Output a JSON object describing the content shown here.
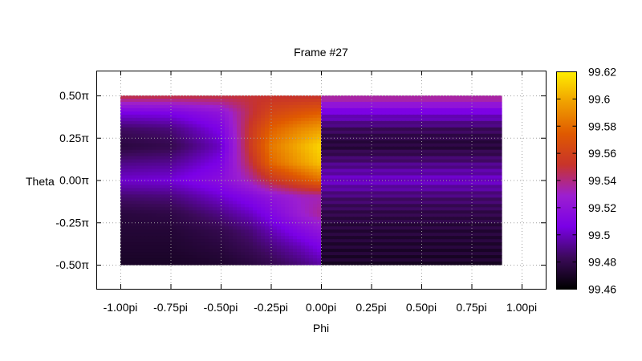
{
  "chart_data": {
    "type": "heatmap",
    "title": "Frame #27",
    "xlabel": "Phi",
    "ylabel": "Theta",
    "x_range": [
      -1.0,
      1.0
    ],
    "y_range": [
      -0.5,
      0.5
    ],
    "data_x_extent": [
      -1.0,
      0.9
    ],
    "data_y_extent": [
      -0.5,
      0.5
    ],
    "xticks": [
      {
        "value": -1.0,
        "label": "-1.00pi"
      },
      {
        "value": -0.75,
        "label": "-0.75pi"
      },
      {
        "value": -0.5,
        "label": "-0.50pi"
      },
      {
        "value": -0.25,
        "label": "-0.25pi"
      },
      {
        "value": 0.0,
        "label": "0.00pi"
      },
      {
        "value": 0.25,
        "label": "0.25pi"
      },
      {
        "value": 0.5,
        "label": "0.50pi"
      },
      {
        "value": 0.75,
        "label": "0.75pi"
      },
      {
        "value": 1.0,
        "label": "1.00pi"
      }
    ],
    "yticks": [
      {
        "value": 0.5,
        "label": "0.50π"
      },
      {
        "value": 0.25,
        "label": "0.25π"
      },
      {
        "value": 0.0,
        "label": "0.00π"
      },
      {
        "value": -0.25,
        "label": "-0.25π"
      },
      {
        "value": -0.5,
        "label": "-0.50π"
      }
    ],
    "grid": true,
    "colorbar": {
      "range": [
        99.46,
        99.62
      ],
      "ticks": [
        "99.62",
        "99.6",
        "99.58",
        "99.56",
        "99.54",
        "99.52",
        "99.5",
        "99.48",
        "99.46"
      ],
      "tick_values": [
        99.62,
        99.6,
        99.58,
        99.56,
        99.54,
        99.52,
        99.5,
        99.48,
        99.46
      ],
      "palette": [
        "#000000",
        "#3b0a59",
        "#7a00e6",
        "#9c1fd0",
        "#c8342a",
        "#e05a00",
        "#f0a000",
        "#ffee00"
      ]
    },
    "theta_values": [
      -0.5,
      -0.4,
      -0.3,
      -0.2,
      -0.1,
      0.0,
      0.1,
      0.2,
      0.3,
      0.4,
      0.5
    ],
    "phi_values": [
      -1.0,
      -0.75,
      -0.5,
      -0.35,
      -0.25,
      -0.1,
      -0.01,
      0.01,
      0.25,
      0.5,
      0.75,
      0.9
    ],
    "values": [
      [
        99.47,
        99.47,
        99.472,
        99.476,
        99.48,
        99.488,
        99.494,
        99.47,
        99.47,
        99.47,
        99.47,
        99.47
      ],
      [
        99.472,
        99.472,
        99.476,
        99.482,
        99.488,
        99.498,
        99.506,
        99.472,
        99.472,
        99.472,
        99.472,
        99.472
      ],
      [
        99.474,
        99.474,
        99.48,
        99.488,
        99.498,
        99.512,
        99.52,
        99.474,
        99.474,
        99.474,
        99.474,
        99.474
      ],
      [
        99.476,
        99.478,
        99.49,
        99.5,
        99.51,
        99.528,
        99.536,
        99.478,
        99.478,
        99.478,
        99.478,
        99.478
      ],
      [
        99.486,
        99.488,
        99.502,
        99.512,
        99.52,
        99.53,
        99.532,
        99.486,
        99.486,
        99.486,
        99.486,
        99.486
      ],
      [
        99.502,
        99.504,
        99.516,
        99.534,
        99.552,
        99.57,
        99.58,
        99.5,
        99.5,
        99.5,
        99.5,
        99.5
      ],
      [
        99.49,
        99.492,
        99.508,
        99.548,
        99.578,
        99.596,
        99.606,
        99.488,
        99.488,
        99.488,
        99.488,
        99.488
      ],
      [
        99.476,
        99.48,
        99.5,
        99.556,
        99.584,
        99.602,
        99.612,
        99.474,
        99.474,
        99.474,
        99.474,
        99.474
      ],
      [
        99.484,
        99.488,
        99.508,
        99.554,
        99.576,
        99.59,
        99.596,
        99.482,
        99.482,
        99.482,
        99.482,
        99.482
      ],
      [
        99.506,
        99.508,
        99.52,
        99.548,
        99.562,
        99.57,
        99.574,
        99.504,
        99.504,
        99.504,
        99.504,
        99.504
      ],
      [
        99.55,
        99.55,
        99.55,
        99.55,
        99.55,
        99.55,
        99.55,
        99.54,
        99.54,
        99.54,
        99.54,
        99.54
      ]
    ]
  }
}
